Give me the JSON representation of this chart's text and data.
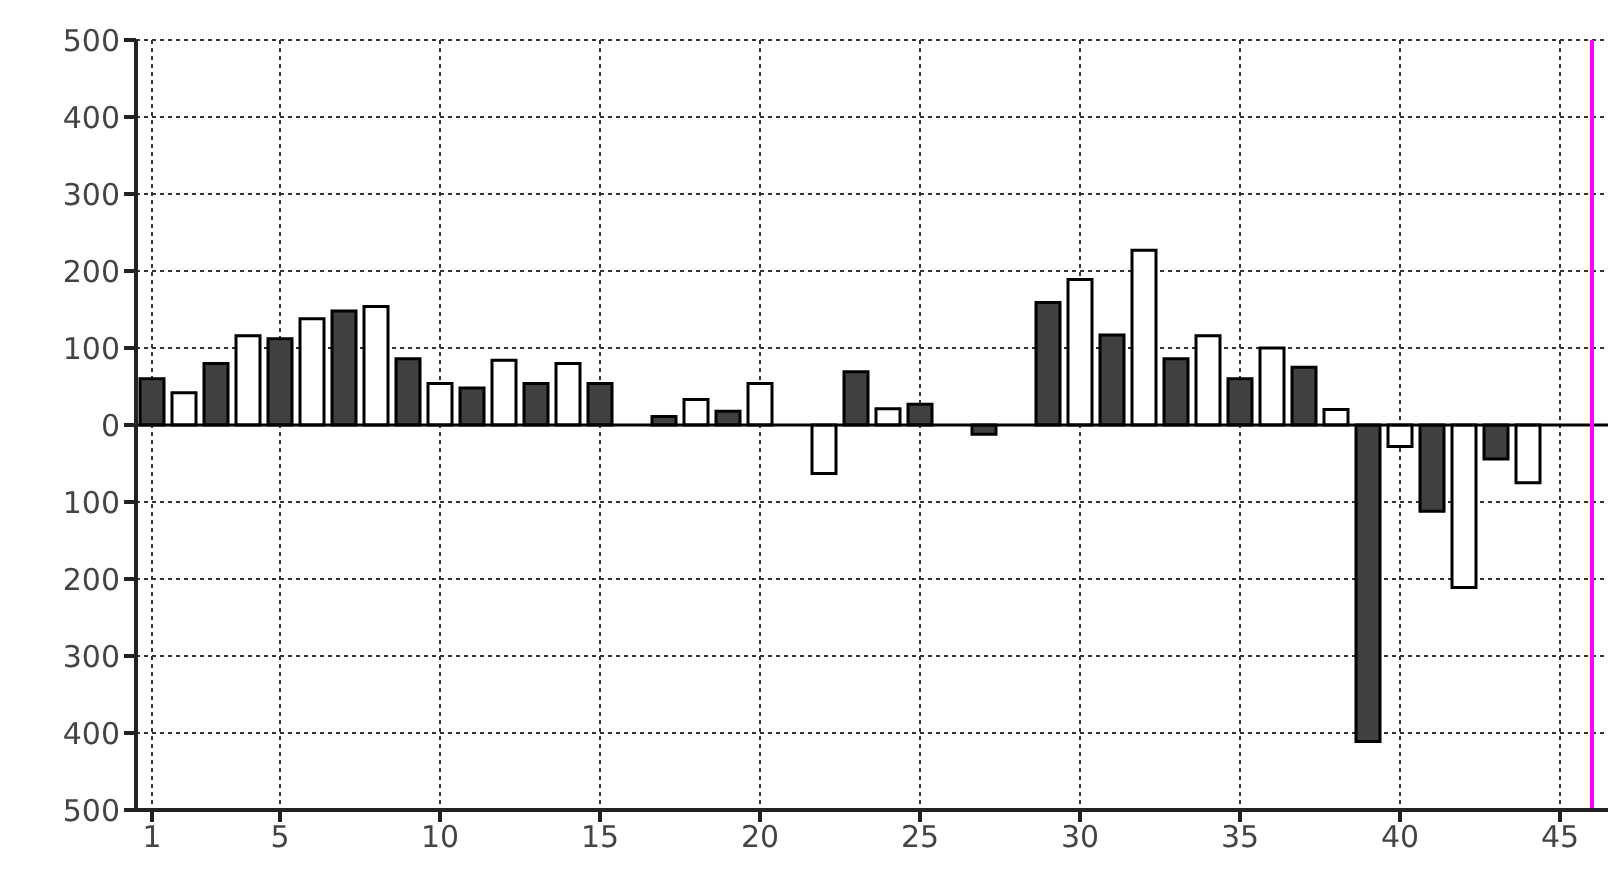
{
  "chart_data": {
    "type": "bar",
    "x": [
      1,
      2,
      3,
      4,
      5,
      6,
      7,
      8,
      9,
      10,
      11,
      12,
      13,
      14,
      15,
      16,
      17,
      18,
      19,
      20,
      21,
      22,
      23,
      24,
      25,
      26,
      27,
      28,
      29,
      30,
      31,
      32,
      33,
      34,
      35,
      36,
      37,
      38,
      39,
      40,
      41,
      42,
      43,
      44
    ],
    "values": [
      60,
      42,
      80,
      116,
      112,
      138,
      148,
      154,
      86,
      54,
      48,
      84,
      54,
      80,
      54,
      null,
      11,
      33,
      18,
      54,
      null,
      -63,
      69,
      21,
      27,
      null,
      -12,
      null,
      159,
      189,
      117,
      227,
      86,
      116,
      60,
      100,
      75,
      20,
      -411,
      -28,
      -112,
      -211,
      -44,
      -75
    ],
    "colors": [
      "#404040",
      "#ffffff",
      "#404040",
      "#ffffff",
      "#404040",
      "#ffffff",
      "#404040",
      "#ffffff",
      "#404040",
      "#ffffff",
      "#404040",
      "#ffffff",
      "#404040",
      "#ffffff",
      "#404040",
      "#ffffff",
      "#404040",
      "#ffffff",
      "#404040",
      "#ffffff",
      "#404040",
      "#ffffff",
      "#404040",
      "#ffffff",
      "#404040",
      "#ffffff",
      "#404040",
      "#ffffff",
      "#404040",
      "#ffffff",
      "#404040",
      "#ffffff",
      "#404040",
      "#ffffff",
      "#404040",
      "#ffffff",
      "#404040",
      "#ffffff",
      "#404040",
      "#ffffff",
      "#404040",
      "#ffffff",
      "#404040",
      "#ffffff"
    ],
    "xlim": [
      0.5,
      46.5
    ],
    "xticks": [
      1,
      5,
      10,
      15,
      20,
      25,
      30,
      35,
      40,
      45
    ],
    "ylim": [
      -500,
      500
    ],
    "yticks": [
      500,
      400,
      300,
      200,
      100,
      0,
      {
        "value": -100,
        "label": "100"
      },
      {
        "value": -200,
        "label": "200"
      },
      {
        "value": -300,
        "label": "300"
      },
      {
        "value": -400,
        "label": "400"
      },
      {
        "value": -500,
        "label": "500"
      }
    ],
    "grid": true,
    "ref_lines": [
      {
        "axis": "x",
        "value": 46,
        "color": "#ff00ff"
      }
    ]
  }
}
